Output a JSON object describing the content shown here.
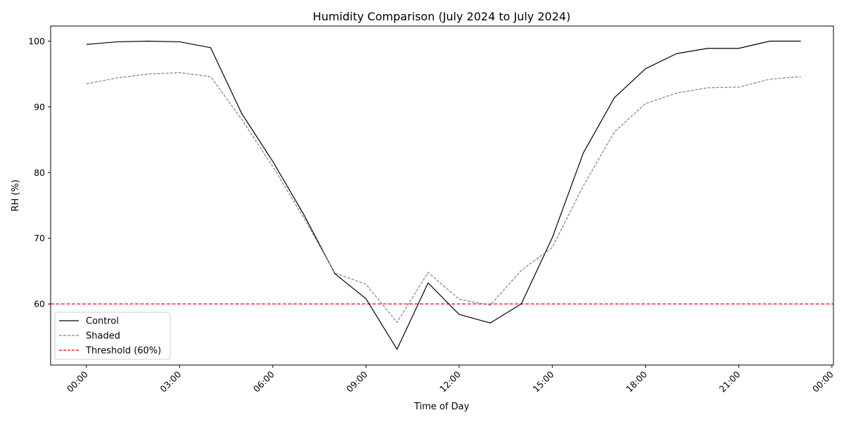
{
  "chart_data": {
    "type": "line",
    "title": "Humidity Comparison (July 2024 to July 2024)",
    "xlabel": "Time of Day",
    "ylabel": "RH (%)",
    "x_unit": "hour of day",
    "xlim": [
      -1.15,
      24.05
    ],
    "ylim": [
      50.7,
      102.3
    ],
    "x_ticks": [
      0,
      3,
      6,
      9,
      12,
      15,
      18,
      21,
      24
    ],
    "x_tick_labels": [
      "00:00",
      "03:00",
      "06:00",
      "09:00",
      "12:00",
      "15:00",
      "18:00",
      "21:00",
      "00:00"
    ],
    "y_ticks": [
      60,
      70,
      80,
      90,
      100
    ],
    "y_tick_labels": [
      "60",
      "70",
      "80",
      "90",
      "100"
    ],
    "grid": false,
    "legend_position": "lower-left",
    "x": [
      0,
      1,
      2,
      3,
      4,
      5,
      6,
      7,
      8,
      9,
      10,
      11,
      12,
      13,
      14,
      15,
      16,
      17,
      18,
      19,
      20,
      21,
      22,
      23
    ],
    "series": [
      {
        "name": "Control",
        "color": "#000000",
        "style": "solid",
        "values": [
          99.5,
          99.9,
          100.0,
          99.9,
          99.0,
          89.0,
          81.7,
          73.6,
          64.6,
          60.8,
          53.1,
          63.2,
          58.4,
          57.1,
          60.0,
          70.1,
          83.0,
          91.4,
          95.8,
          98.1,
          98.9,
          98.9,
          100.0,
          100.0
        ]
      },
      {
        "name": "Shaded",
        "color": "#808080",
        "style": "dashed",
        "values": [
          93.5,
          94.4,
          95.0,
          95.2,
          94.6,
          88.1,
          80.9,
          73.1,
          64.7,
          63.0,
          57.2,
          64.8,
          60.7,
          59.8,
          65.1,
          68.6,
          78.0,
          86.2,
          90.5,
          92.1,
          92.9,
          93.0,
          94.2,
          94.6
        ]
      }
    ],
    "threshold": {
      "name": "Threshold (60%)",
      "value": 60,
      "color": "#ff0000",
      "style": "dashed"
    }
  }
}
